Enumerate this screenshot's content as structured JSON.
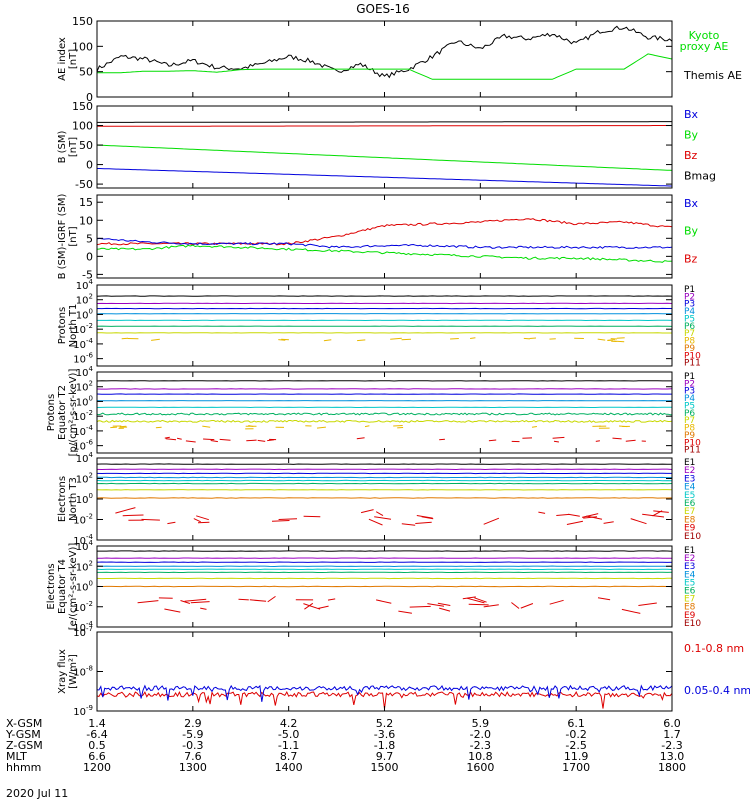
{
  "title": "GOES-16",
  "date_label": "2020 Jul 11",
  "chart_data": [
    {
      "type": "line",
      "id": "ae",
      "ylabel": [
        "AE index",
        "[nT]"
      ],
      "ylim": [
        0,
        150
      ],
      "yticks": [
        0,
        50,
        100,
        150
      ],
      "x": [
        1200,
        1215,
        1230,
        1245,
        1300,
        1315,
        1330,
        1345,
        1400,
        1415,
        1430,
        1445,
        1500,
        1515,
        1530,
        1545,
        1600,
        1615,
        1630,
        1645,
        1700,
        1715,
        1730,
        1745,
        1800
      ],
      "series": [
        {
          "name": "Themis AE",
          "color": "#000000",
          "values": [
            55,
            80,
            75,
            62,
            72,
            58,
            56,
            67,
            80,
            70,
            50,
            65,
            40,
            55,
            80,
            110,
            95,
            120,
            115,
            125,
            105,
            130,
            138,
            118,
            113
          ]
        },
        {
          "name": "Kyoto proxy AE",
          "color": "#00dd00",
          "values": [
            48,
            48,
            51,
            51,
            52,
            49,
            54,
            55,
            55,
            55,
            55,
            55,
            55,
            55,
            35,
            35,
            35,
            35,
            35,
            35,
            55,
            55,
            55,
            85,
            75
          ]
        }
      ],
      "legend": [
        {
          "text": "Kyoto",
          "color": "#00dd00"
        },
        {
          "text": "proxy AE",
          "color": "#00dd00"
        },
        {
          "text": "Themis AE",
          "color": "#000000"
        }
      ]
    },
    {
      "type": "line",
      "id": "bsm",
      "ylabel": [
        "B (SM)",
        "[nT]"
      ],
      "ylim": [
        -60,
        150
      ],
      "yticks": [
        -50,
        0,
        50,
        100,
        150
      ],
      "x": [
        1200,
        1800
      ],
      "series": [
        {
          "name": "Bmag",
          "color": "#000000",
          "values": [
            108,
            110
          ]
        },
        {
          "name": "Bz",
          "color": "#dd0000",
          "values": [
            98,
            100
          ]
        },
        {
          "name": "By",
          "color": "#00dd00",
          "values": [
            50,
            -15
          ]
        },
        {
          "name": "Bx",
          "color": "#0000dd",
          "values": [
            -10,
            -55
          ]
        }
      ],
      "legend": [
        {
          "text": "Bx",
          "color": "#0000dd"
        },
        {
          "text": "By",
          "color": "#00dd00"
        },
        {
          "text": "Bz",
          "color": "#dd0000"
        },
        {
          "text": "Bmag",
          "color": "#000000"
        }
      ]
    },
    {
      "type": "line",
      "id": "digrf",
      "ylabel": [
        "B (SM)-IGRF (SM)",
        "[nT]"
      ],
      "ylim": [
        -6,
        17
      ],
      "yticks": [
        -5,
        0,
        5,
        10,
        15
      ],
      "x": [
        1200,
        1230,
        1300,
        1330,
        1400,
        1430,
        1500,
        1530,
        1600,
        1630,
        1700,
        1730,
        1800
      ],
      "series": [
        {
          "name": "Bz",
          "color": "#dd0000",
          "values": [
            3.5,
            3.5,
            3.5,
            3.5,
            3.5,
            5.5,
            8.5,
            9,
            9.5,
            10.5,
            9,
            9.5,
            8
          ]
        },
        {
          "name": "Bx",
          "color": "#0000dd",
          "values": [
            5,
            4,
            3.5,
            3.5,
            3.5,
            2.5,
            3,
            3,
            2.5,
            2.5,
            2.5,
            2.5,
            2.5
          ]
        },
        {
          "name": "By",
          "color": "#00dd00",
          "values": [
            2,
            2,
            3,
            2.5,
            2,
            1.5,
            1,
            0.5,
            0,
            -0.5,
            -0.5,
            -1,
            -1.5
          ]
        }
      ],
      "legend": [
        {
          "text": "Bx",
          "color": "#0000dd"
        },
        {
          "text": "By",
          "color": "#00dd00"
        },
        {
          "text": "Bz",
          "color": "#dd0000"
        }
      ]
    },
    {
      "type": "line",
      "id": "protons_t1",
      "log": true,
      "ylabel": [
        "Protons",
        "North T1"
      ],
      "ylim_exp": [
        -7,
        4
      ],
      "ytick_exps": [
        -6,
        -4,
        -2,
        0,
        2,
        4
      ],
      "series": [
        {
          "name": "P1",
          "color": "#000000",
          "level": 2.5,
          "style": "solid"
        },
        {
          "name": "P2",
          "color": "#9a00c0",
          "level": 1.5,
          "style": "solid"
        },
        {
          "name": "P3",
          "color": "#0000dd",
          "level": 0.8,
          "style": "solid"
        },
        {
          "name": "P4",
          "color": "#0090dd",
          "level": 0.1,
          "style": "solid"
        },
        {
          "name": "P5",
          "color": "#00c8c8",
          "level": -0.8,
          "style": "solid"
        },
        {
          "name": "P6",
          "color": "#00b060",
          "level": -1.6,
          "style": "solid"
        },
        {
          "name": "P7",
          "color": "#c8d800",
          "level": -2.5,
          "style": "solid"
        },
        {
          "name": "P8",
          "color": "#e8b800",
          "level": -3.4,
          "style": "dash"
        }
      ],
      "legend": [
        {
          "text": "P1",
          "color": "#000000"
        },
        {
          "text": "P2",
          "color": "#9a00c0"
        },
        {
          "text": "P3",
          "color": "#0000dd"
        },
        {
          "text": "P4",
          "color": "#0090dd"
        },
        {
          "text": "P5",
          "color": "#00c8c8"
        },
        {
          "text": "P6",
          "color": "#00b060"
        },
        {
          "text": "P7",
          "color": "#c8d800"
        },
        {
          "text": "P8",
          "color": "#e8b800"
        },
        {
          "text": "P9",
          "color": "#e07800"
        },
        {
          "text": "P10",
          "color": "#dd0000"
        },
        {
          "text": "P11",
          "color": "#a00000"
        }
      ]
    },
    {
      "type": "line",
      "id": "protons_t2",
      "log": true,
      "ylabel": [
        "Protons",
        "Equator T2",
        "[p/(cm²-s-sr-keV)]"
      ],
      "ylim_exp": [
        -7,
        4
      ],
      "ytick_exps": [
        -6,
        -4,
        -2,
        0,
        2,
        4
      ],
      "series": [
        {
          "name": "P1",
          "color": "#000000",
          "level": 2.8,
          "style": "solid"
        },
        {
          "name": "P2",
          "color": "#9a00c0",
          "level": 1.7,
          "style": "solid"
        },
        {
          "name": "P3",
          "color": "#0000dd",
          "level": 1.0,
          "style": "solid"
        },
        {
          "name": "P4",
          "color": "#0090dd",
          "level": 0.1,
          "style": "solid"
        },
        {
          "name": "P5",
          "color": "#00c8c8",
          "level": -0.8,
          "style": "solid"
        },
        {
          "name": "P6",
          "color": "#00b060",
          "level": -1.7,
          "style": "noisy"
        },
        {
          "name": "P7",
          "color": "#c8d800",
          "level": -2.7,
          "style": "noisy"
        },
        {
          "name": "P8",
          "color": "#e8b800",
          "level": -3.5,
          "style": "dash"
        },
        {
          "name": "P10",
          "color": "#dd0000",
          "level": -5.2,
          "style": "dots"
        }
      ],
      "legend": [
        {
          "text": "P1",
          "color": "#000000"
        },
        {
          "text": "P2",
          "color": "#9a00c0"
        },
        {
          "text": "P3",
          "color": "#0000dd"
        },
        {
          "text": "P4",
          "color": "#0090dd"
        },
        {
          "text": "P5",
          "color": "#00c8c8"
        },
        {
          "text": "P6",
          "color": "#00b060"
        },
        {
          "text": "P7",
          "color": "#c8d800"
        },
        {
          "text": "P8",
          "color": "#e8b800"
        },
        {
          "text": "P9",
          "color": "#e07800"
        },
        {
          "text": "P10",
          "color": "#dd0000"
        },
        {
          "text": "P11",
          "color": "#a00000"
        }
      ]
    },
    {
      "type": "line",
      "id": "electrons_t3",
      "log": true,
      "ylabel": [
        "Electrons",
        "North T3"
      ],
      "ylim_exp": [
        -4,
        4
      ],
      "ytick_exps": [
        -4,
        -2,
        0,
        2,
        4
      ],
      "series": [
        {
          "name": "E1",
          "color": "#000000",
          "level": 3.4,
          "style": "solid"
        },
        {
          "name": "E2",
          "color": "#9a00c0",
          "level": 2.9,
          "style": "solid"
        },
        {
          "name": "E3",
          "color": "#0000dd",
          "level": 2.5,
          "style": "solid"
        },
        {
          "name": "E4",
          "color": "#0090dd",
          "level": 2.1,
          "style": "solid"
        },
        {
          "name": "E5",
          "color": "#00c8c8",
          "level": 1.8,
          "style": "solid"
        },
        {
          "name": "E6",
          "color": "#00b060",
          "level": 1.5,
          "style": "solid"
        },
        {
          "name": "E7",
          "color": "#c8d800",
          "level": 0.9,
          "style": "solid"
        },
        {
          "name": "E8",
          "color": "#e07800",
          "level": 0.1,
          "style": "solid"
        },
        {
          "name": "E10",
          "color": "#dd0000",
          "level": -1.8,
          "style": "segs"
        }
      ],
      "legend": [
        {
          "text": "E1",
          "color": "#000000"
        },
        {
          "text": "E2",
          "color": "#9a00c0"
        },
        {
          "text": "E3",
          "color": "#0000dd"
        },
        {
          "text": "E4",
          "color": "#0090dd"
        },
        {
          "text": "E5",
          "color": "#00c8c8"
        },
        {
          "text": "E6",
          "color": "#00b060"
        },
        {
          "text": "E7",
          "color": "#c8d800"
        },
        {
          "text": "E8",
          "color": "#e07800"
        },
        {
          "text": "E9",
          "color": "#dd0000"
        },
        {
          "text": "E10",
          "color": "#a00000"
        }
      ]
    },
    {
      "type": "line",
      "id": "electrons_t4",
      "log": true,
      "ylabel": [
        "Electrons",
        "Equator T4",
        "[e/(cm²-s-sr-keV)]"
      ],
      "ylim_exp": [
        -4,
        4
      ],
      "ytick_exps": [
        -4,
        -2,
        0,
        2,
        4
      ],
      "series": [
        {
          "name": "E1",
          "color": "#000000",
          "level": 3.5,
          "style": "solid"
        },
        {
          "name": "E2",
          "color": "#9a00c0",
          "level": 2.8,
          "style": "solid"
        },
        {
          "name": "E3",
          "color": "#0000dd",
          "level": 2.4,
          "style": "solid"
        },
        {
          "name": "E4",
          "color": "#0090dd",
          "level": 2.0,
          "style": "solid"
        },
        {
          "name": "E5",
          "color": "#00c8c8",
          "level": 1.7,
          "style": "solid"
        },
        {
          "name": "E6",
          "color": "#00b060",
          "level": 1.4,
          "style": "solid"
        },
        {
          "name": "E7",
          "color": "#c8d800",
          "level": 0.8,
          "style": "solid"
        },
        {
          "name": "E8",
          "color": "#e07800",
          "level": 0.0,
          "style": "solid"
        },
        {
          "name": "E10",
          "color": "#dd0000",
          "level": -1.8,
          "style": "segs"
        }
      ],
      "legend": [
        {
          "text": "E1",
          "color": "#000000"
        },
        {
          "text": "E2",
          "color": "#9a00c0"
        },
        {
          "text": "E3",
          "color": "#0000dd"
        },
        {
          "text": "E4",
          "color": "#0090dd"
        },
        {
          "text": "E5",
          "color": "#00c8c8"
        },
        {
          "text": "E6",
          "color": "#00b060"
        },
        {
          "text": "E7",
          "color": "#c8d800"
        },
        {
          "text": "E8",
          "color": "#e07800"
        },
        {
          "text": "E9",
          "color": "#dd0000"
        },
        {
          "text": "E10",
          "color": "#a00000"
        }
      ]
    },
    {
      "type": "line",
      "id": "xray",
      "log": true,
      "ylabel": [
        "Xray flux",
        "[W/m²]"
      ],
      "ylim_exp": [
        -9,
        -7
      ],
      "ytick_exps": [
        -9,
        -8,
        -7
      ],
      "series": [
        {
          "name": "0.1-0.8 nm",
          "color": "#dd0000",
          "level": -8.58,
          "style": "noisy"
        },
        {
          "name": "0.05-0.4 nm",
          "color": "#0000dd",
          "level": -8.42,
          "style": "noisy"
        }
      ],
      "legend": [
        {
          "text": "0.1-0.8 nm",
          "color": "#dd0000"
        },
        {
          "text": "0.05-0.4 nm",
          "color": "#0000dd"
        }
      ]
    }
  ],
  "xaxis": {
    "hhmm": [
      "1200",
      "1300",
      "1400",
      "1500",
      "1600",
      "1700",
      "1800"
    ],
    "rows": [
      {
        "label": "X-GSM",
        "values": [
          "1.4",
          "2.9",
          "4.2",
          "5.2",
          "5.9",
          "6.1",
          "6.0"
        ]
      },
      {
        "label": "Y-GSM",
        "values": [
          "-6.4",
          "-5.9",
          "-5.0",
          "-3.6",
          "-2.0",
          "-0.2",
          "1.7"
        ]
      },
      {
        "label": "Z-GSM",
        "values": [
          "0.5",
          "-0.3",
          "-1.1",
          "-1.8",
          "-2.3",
          "-2.5",
          "-2.3"
        ]
      },
      {
        "label": "MLT",
        "values": [
          "6.6",
          "7.6",
          "8.7",
          "9.7",
          "10.8",
          "11.9",
          "13.0"
        ]
      },
      {
        "label": "hhmm",
        "values": [
          "1200",
          "1300",
          "1400",
          "1500",
          "1600",
          "1700",
          "1800"
        ]
      }
    ]
  }
}
